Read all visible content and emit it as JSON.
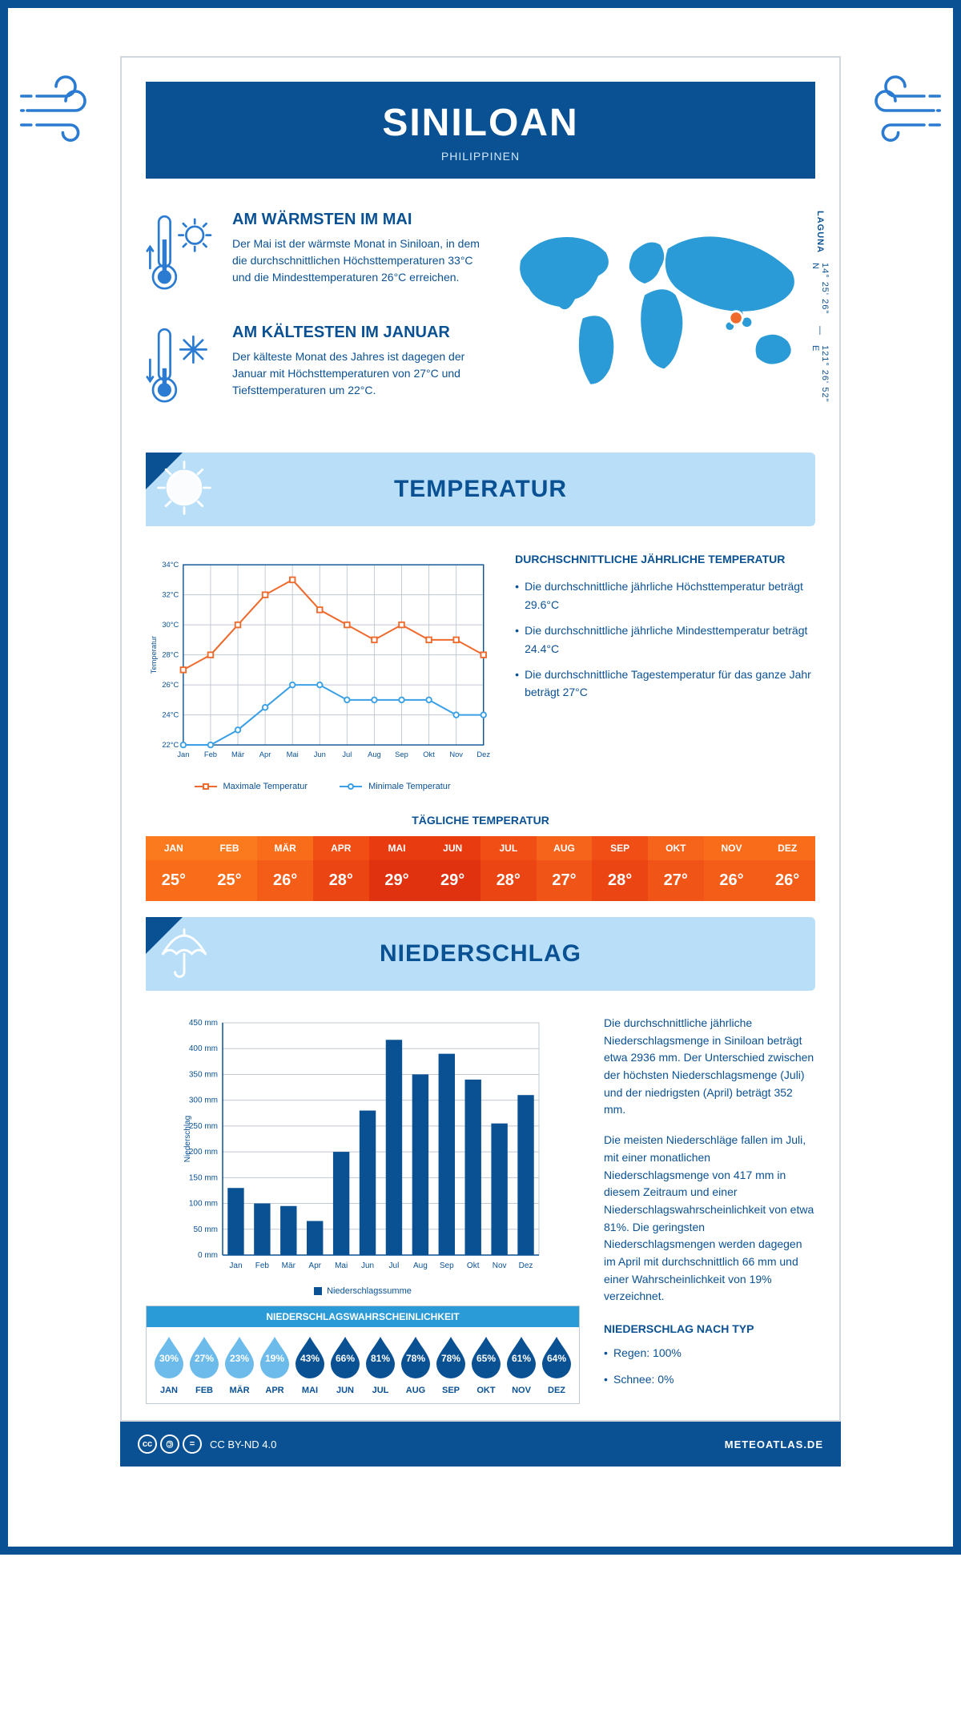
{
  "header": {
    "city": "SINILOAN",
    "country": "PHILIPPINEN"
  },
  "coords": {
    "region": "LAGUNA",
    "lat": "14° 25' 26\" N",
    "lon": "121° 26' 52\" E"
  },
  "facts": {
    "warm": {
      "title": "AM WÄRMSTEN IM MAI",
      "text": "Der Mai ist der wärmste Monat in Siniloan, in dem die durchschnittlichen Höchsttemperaturen 33°C und die Mindesttemperaturen 26°C erreichen."
    },
    "cold": {
      "title": "AM KÄLTESTEN IM JANUAR",
      "text": "Der kälteste Monat des Jahres ist dagegen der Januar mit Höchsttemperaturen von 27°C und Tiefsttemperaturen um 22°C."
    }
  },
  "months": [
    "Jan",
    "Feb",
    "Mär",
    "Apr",
    "Mai",
    "Jun",
    "Jul",
    "Aug",
    "Sep",
    "Okt",
    "Nov",
    "Dez"
  ],
  "months_uc": [
    "JAN",
    "FEB",
    "MÄR",
    "APR",
    "MAI",
    "JUN",
    "JUL",
    "AUG",
    "SEP",
    "OKT",
    "NOV",
    "DEZ"
  ],
  "temperature": {
    "section_title": "TEMPERATUR",
    "chart": {
      "type": "line",
      "ylabel": "Temperatur",
      "ylim": [
        22,
        34
      ],
      "ytick_step": 2,
      "ytick_suffix": "°C",
      "grid_color": "#c0c8d0",
      "axis_color": "#0a5194",
      "background_color": "#ffffff",
      "series": {
        "max": {
          "label": "Maximale Temperatur",
          "color": "#ee6a2d",
          "marker": "square",
          "values": [
            27,
            28,
            30,
            32,
            33,
            31,
            30,
            29,
            30,
            29,
            29,
            28
          ]
        },
        "min": {
          "label": "Minimale Temperatur",
          "color": "#3ba0e6",
          "marker": "circle",
          "values": [
            22,
            22,
            23,
            24.5,
            26,
            26,
            25,
            25,
            25,
            25,
            24,
            24
          ]
        }
      }
    },
    "annual": {
      "heading": "DURCHSCHNITTLICHE JÄHRLICHE TEMPERATUR",
      "b1": "Die durchschnittliche jährliche Höchsttemperatur beträgt 29.6°C",
      "b2": "Die durchschnittliche jährliche Mindesttemperatur beträgt 24.4°C",
      "b3": "Die durchschnittliche Tagestemperatur für das ganze Jahr beträgt 27°C"
    },
    "daily": {
      "title": "TÄGLICHE TEMPERATUR",
      "values": [
        "25°",
        "25°",
        "26°",
        "28°",
        "29°",
        "29°",
        "28°",
        "27°",
        "28°",
        "27°",
        "26°",
        "26°"
      ],
      "header_colors": [
        "#fb7a1d",
        "#fb7a1d",
        "#f86c1a",
        "#f04e14",
        "#e83b10",
        "#e83b10",
        "#f04e14",
        "#f5641a",
        "#f04e14",
        "#f5641a",
        "#f86c1a",
        "#f86c1a"
      ],
      "value_colors": [
        "#f86c1a",
        "#f86c1a",
        "#f45d17",
        "#ea4512",
        "#e0320e",
        "#e0320e",
        "#ea4512",
        "#f05517",
        "#ea4512",
        "#f05517",
        "#f45d17",
        "#f45d17"
      ]
    }
  },
  "precip": {
    "section_title": "NIEDERSCHLAG",
    "chart": {
      "type": "bar",
      "ylabel": "Niederschlag",
      "ylim": [
        0,
        450
      ],
      "ytick_step": 50,
      "ytick_suffix": " mm",
      "bar_color": "#0a5194",
      "grid_color": "#c0c8d0",
      "values": [
        130,
        100,
        95,
        66,
        200,
        280,
        417,
        350,
        390,
        340,
        255,
        310
      ]
    },
    "legend": "Niederschlagssumme",
    "text1": "Die durchschnittliche jährliche Niederschlagsmenge in Siniloan beträgt etwa 2936 mm. Der Unterschied zwischen der höchsten Niederschlagsmenge (Juli) und der niedrigsten (April) beträgt 352 mm.",
    "text2": "Die meisten Niederschläge fallen im Juli, mit einer monatlichen Niederschlagsmenge von 417 mm in diesem Zeitraum und einer Niederschlagswahrscheinlichkeit von etwa 81%. Die geringsten Niederschlagsmengen werden dagegen im April mit durchschnittlich 66 mm und einer Wahrscheinlichkeit von 19% verzeichnet.",
    "prob": {
      "title": "NIEDERSCHLAGSWAHRSCHEINLICHKEIT",
      "values": [
        30,
        27,
        23,
        19,
        43,
        66,
        81,
        78,
        78,
        65,
        61,
        64
      ],
      "low_color": "#6cbbeb",
      "high_color": "#0a5194",
      "threshold": 40
    },
    "bytype": {
      "heading": "NIEDERSCHLAG NACH TYP",
      "b1": "Regen: 100%",
      "b2": "Schnee: 0%"
    }
  },
  "footer": {
    "license": "CC BY-ND 4.0",
    "brand": "METEOATLAS.DE"
  },
  "worldmap": {
    "land_color": "#2a9bd6",
    "marker_color": "#ee6a2d",
    "marker_border": "#ffffff",
    "marker_pos": [
      0.745,
      0.56
    ]
  }
}
